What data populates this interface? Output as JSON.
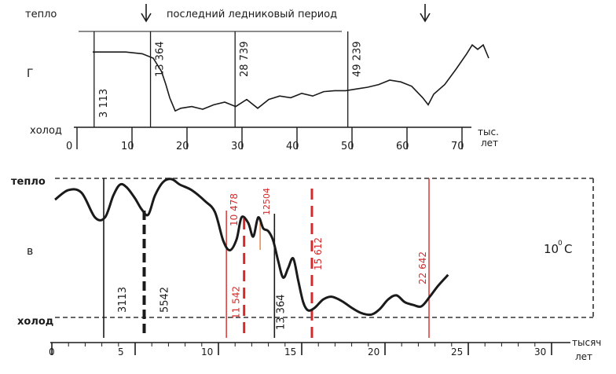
{
  "top_chart": {
    "title": "последний ледниковый период",
    "warm_label": "тепло",
    "cold_label": "холод",
    "panel_letter": "Г",
    "unit_line1": "тыс.",
    "unit_line2": "лет",
    "x_ticks": [
      "0",
      "10",
      "20",
      "30",
      "40",
      "50",
      "60",
      "70"
    ],
    "marker_labels": [
      "3 113",
      "13 364",
      "28 739",
      "49 239"
    ]
  },
  "bottom_chart": {
    "warm_label": "тепло",
    "cold_label": "холод",
    "panel_letter": "в",
    "unit_line1": "тысяч",
    "unit_line2": "лет",
    "temp_label": "10",
    "temp_sup": "0",
    "temp_unit": "C",
    "x_ticks": [
      "0",
      "5",
      "10",
      "15",
      "20",
      "25",
      "30"
    ],
    "black_labels": [
      "3113",
      "5542",
      "13 364"
    ],
    "red_labels": [
      "10 478",
      "11 542",
      "15 612",
      "22 642"
    ],
    "orange_labels": [
      "12504"
    ]
  },
  "colors": {
    "curve": "#1a1a1a",
    "red_marker": "#d42a2a",
    "orange_marker": "#e0782a",
    "axis": "#1a1a1a",
    "dashed_frame": "#333333"
  },
  "chart_data": [
    {
      "type": "line",
      "title": "последний ледниковый период",
      "xlabel": "тыс. лет",
      "ylabel": "",
      "xlim": [
        0,
        75
      ],
      "x_ticks": [
        0,
        10,
        20,
        30,
        40,
        50,
        60,
        70
      ],
      "y_range_labels": [
        "холод",
        "тепло"
      ],
      "series": [
        {
          "x": [
            0,
            3,
            6,
            9,
            11,
            12.5,
            13.3,
            14,
            15,
            16,
            18,
            20,
            22,
            24,
            26,
            28,
            30,
            32,
            34,
            36,
            38,
            40,
            42,
            44,
            46,
            48,
            50,
            52,
            54,
            56,
            58,
            60,
            61,
            62,
            64,
            66,
            68,
            69,
            70,
            71,
            72
          ],
          "values": [
            0.82,
            0.82,
            0.82,
            0.8,
            0.75,
            0.6,
            0.45,
            0.3,
            0.15,
            0.18,
            0.2,
            0.17,
            0.22,
            0.25,
            0.2,
            0.28,
            0.18,
            0.28,
            0.32,
            0.3,
            0.35,
            0.32,
            0.37,
            0.38,
            0.38,
            0.4,
            0.42,
            0.45,
            0.5,
            0.48,
            0.43,
            0.3,
            0.22,
            0.34,
            0.45,
            0.62,
            0.8,
            0.9,
            0.85,
            0.9,
            0.75
          ]
        }
      ],
      "vertical_markers": [
        {
          "x": 3.113,
          "label": "3 113"
        },
        {
          "x": 13.364,
          "label": "13 364"
        },
        {
          "x": 28.739,
          "label": "28 739"
        },
        {
          "x": 49.239,
          "label": "49 239"
        }
      ],
      "arrows_at": [
        13.5,
        65
      ]
    },
    {
      "type": "line",
      "title": "",
      "xlabel": "тысяч лет",
      "ylabel": "",
      "xlim": [
        0,
        30
      ],
      "x_ticks": [
        0,
        5,
        10,
        15,
        20,
        25,
        30
      ],
      "y_range_labels": [
        "холод",
        "тепло"
      ],
      "annotation": "10°C",
      "series": [
        {
          "x": [
            0,
            0.8,
            1.6,
            2.4,
            3.0,
            3.5,
            3.9,
            4.3,
            4.8,
            5.2,
            5.6,
            6.0,
            6.5,
            7.0,
            7.5,
            8.2,
            9.0,
            9.6,
            10.1,
            10.5,
            10.9,
            11.2,
            11.6,
            11.9,
            12.2,
            12.5,
            12.8,
            13.1,
            13.4,
            13.7,
            14.0,
            14.3,
            14.6,
            14.9,
            15.2,
            15.6,
            16.1,
            16.6,
            17.2,
            17.8,
            18.4,
            19.0,
            19.5,
            20.0,
            20.5,
            21.0,
            21.5,
            22.0,
            22.5,
            23.0,
            23.6
          ],
          "values": [
            0.85,
            0.92,
            0.9,
            0.72,
            0.72,
            0.88,
            0.96,
            0.94,
            0.86,
            0.78,
            0.74,
            0.88,
            0.98,
            1.0,
            0.96,
            0.92,
            0.84,
            0.76,
            0.55,
            0.48,
            0.56,
            0.72,
            0.68,
            0.58,
            0.72,
            0.64,
            0.62,
            0.55,
            0.4,
            0.28,
            0.35,
            0.42,
            0.26,
            0.1,
            0.04,
            0.06,
            0.12,
            0.14,
            0.11,
            0.06,
            0.02,
            0.01,
            0.05,
            0.12,
            0.15,
            0.1,
            0.08,
            0.07,
            0.14,
            0.22,
            0.3
          ]
        }
      ],
      "black_markers": [
        {
          "x": 3.113,
          "label": "3113",
          "style": "solid"
        },
        {
          "x": 5.542,
          "label": "5542",
          "style": "bold-dashed"
        },
        {
          "x": 13.364,
          "label": "13 364",
          "style": "solid"
        }
      ],
      "red_markers": [
        {
          "x": 10.478,
          "label": "10 478",
          "style": "solid"
        },
        {
          "x": 11.542,
          "label": "11 542",
          "style": "dashed"
        },
        {
          "x": 15.612,
          "label": "15 612",
          "style": "dashed"
        },
        {
          "x": 22.642,
          "label": "22 642",
          "style": "solid"
        }
      ],
      "orange_markers": [
        {
          "x": 12.504,
          "label": "12504",
          "style": "solid"
        }
      ]
    }
  ]
}
